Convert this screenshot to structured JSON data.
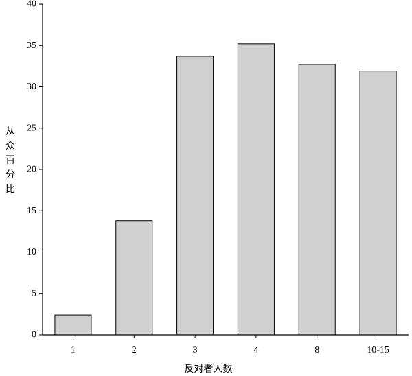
{
  "chart_data": {
    "type": "bar",
    "title": "",
    "xlabel": "反对者人数",
    "ylabel": "从众百分比",
    "categories": [
      "1",
      "2",
      "3",
      "4",
      "8",
      "10-15"
    ],
    "values": [
      2.4,
      13.8,
      33.7,
      35.2,
      32.7,
      31.9
    ],
    "ylim": [
      0,
      40
    ],
    "yticks": [
      0,
      5,
      10,
      15,
      20,
      25,
      30,
      35,
      40
    ],
    "grid": false,
    "legend": "none",
    "bar_color": "#d0d0d0",
    "bar_edge_color": "#000000",
    "axis_color": "#000000"
  }
}
